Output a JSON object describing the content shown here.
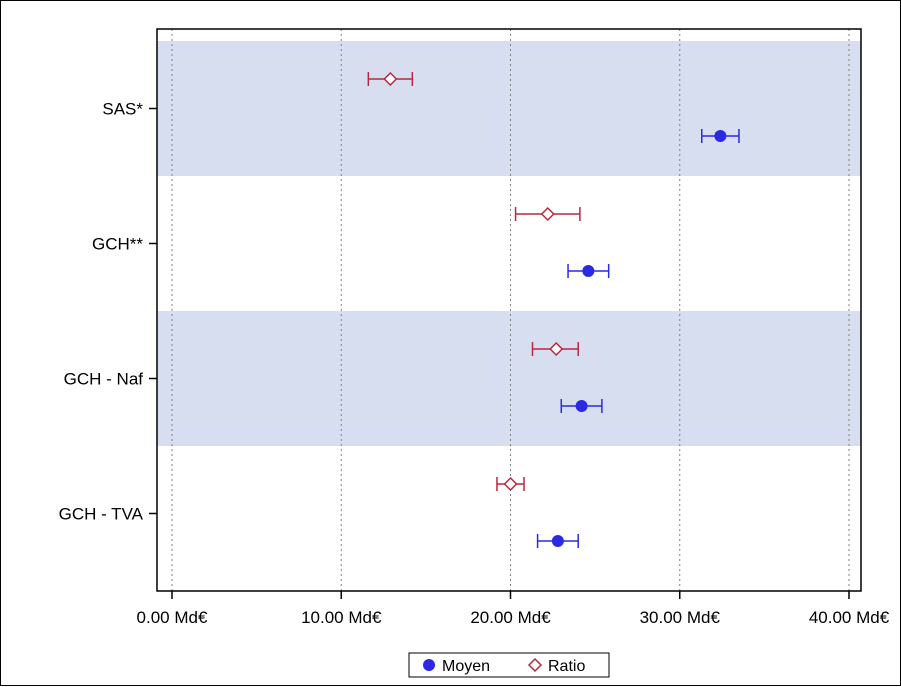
{
  "chart_data": {
    "type": "scatter",
    "orientation": "horizontal",
    "title": "",
    "xlabel": "",
    "ylabel": "",
    "xlim": [
      -1,
      41
    ],
    "x_ticks": [
      0,
      10,
      20,
      30,
      40
    ],
    "x_tick_labels": [
      "0.00 Md€",
      "10.00 Md€",
      "20.00 Md€",
      "30.00 Md€",
      "40.00 Md€"
    ],
    "categories": [
      "SAS*",
      "GCH**",
      "GCH - Naf",
      "GCH - TVA"
    ],
    "band_shading": [
      true,
      false,
      true,
      false
    ],
    "grid": "vertical-dotted",
    "legend_position": "bottom-center",
    "series": [
      {
        "name": "Moyen",
        "marker": "filled-circle",
        "color": "#2a2ae6",
        "values": [
          32.4,
          24.6,
          24.2,
          22.8
        ],
        "lower": [
          31.3,
          23.4,
          23.0,
          21.6
        ],
        "upper": [
          33.5,
          25.8,
          25.4,
          24.0
        ]
      },
      {
        "name": "Ratio",
        "marker": "open-diamond",
        "color": "#b8283c",
        "values": [
          12.9,
          22.2,
          22.7,
          20.0
        ],
        "lower": [
          11.6,
          20.3,
          21.3,
          19.2
        ],
        "upper": [
          14.2,
          24.1,
          24.0,
          20.8
        ]
      }
    ]
  }
}
